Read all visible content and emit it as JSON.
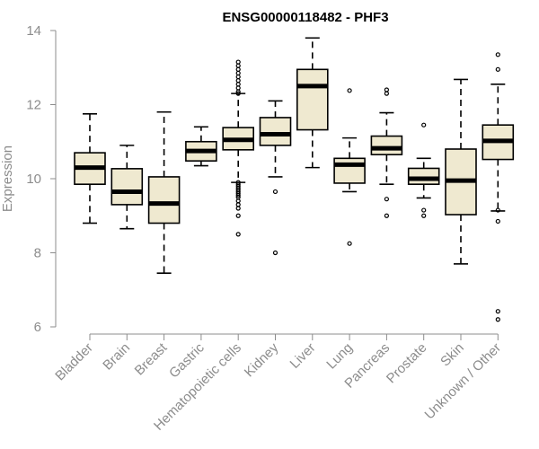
{
  "chart_data": {
    "type": "boxplot",
    "title": "ENSG00000118482 - PHF3",
    "ylabel": "Expression",
    "xlabel": "",
    "ylim": [
      6,
      14
    ],
    "yticks": [
      6,
      8,
      10,
      12,
      14
    ],
    "box_fill": "#efe9d0",
    "categories": [
      "Bladder",
      "Brain",
      "Breast",
      "Gastric",
      "Hematopoietic cells",
      "Kidney",
      "Liver",
      "Lung",
      "Pancreas",
      "Prostate",
      "Skin",
      "Unknown / Other"
    ],
    "boxes": [
      {
        "category": "Bladder",
        "whisker_low": 8.8,
        "q1": 9.85,
        "median": 10.3,
        "q3": 10.7,
        "whisker_high": 11.75,
        "outliers": []
      },
      {
        "category": "Brain",
        "whisker_low": 8.65,
        "q1": 9.3,
        "median": 9.65,
        "q3": 10.27,
        "whisker_high": 10.9,
        "outliers": []
      },
      {
        "category": "Breast",
        "whisker_low": 7.45,
        "q1": 8.8,
        "median": 9.33,
        "q3": 10.05,
        "whisker_high": 11.8,
        "outliers": []
      },
      {
        "category": "Gastric",
        "whisker_low": 10.35,
        "q1": 10.48,
        "median": 10.75,
        "q3": 11.0,
        "whisker_high": 11.4,
        "outliers": []
      },
      {
        "category": "Hematopoietic cells",
        "whisker_low": 9.9,
        "q1": 10.78,
        "median": 11.05,
        "q3": 11.38,
        "whisker_high": 12.3,
        "outliers": [
          8.5,
          9.0,
          9.2,
          9.3,
          9.4,
          9.5,
          9.55,
          9.6,
          9.65,
          9.7,
          9.75,
          9.8,
          9.85,
          9.9,
          12.3,
          12.35,
          12.45,
          12.55,
          12.65,
          12.75,
          12.85,
          12.95,
          13.05,
          13.15
        ]
      },
      {
        "category": "Kidney",
        "whisker_low": 10.05,
        "q1": 10.9,
        "median": 11.2,
        "q3": 11.65,
        "whisker_high": 12.1,
        "outliers": [
          8.0,
          9.65
        ]
      },
      {
        "category": "Liver",
        "whisker_low": 10.3,
        "q1": 11.32,
        "median": 12.5,
        "q3": 12.95,
        "whisker_high": 13.8,
        "outliers": []
      },
      {
        "category": "Lung",
        "whisker_low": 9.65,
        "q1": 9.88,
        "median": 10.38,
        "q3": 10.55,
        "whisker_high": 11.1,
        "outliers": [
          8.25,
          12.38
        ]
      },
      {
        "category": "Pancreas",
        "whisker_low": 9.85,
        "q1": 10.65,
        "median": 10.82,
        "q3": 11.15,
        "whisker_high": 11.78,
        "outliers": [
          9.0,
          9.45,
          12.3,
          12.4
        ]
      },
      {
        "category": "Prostate",
        "whisker_low": 9.48,
        "q1": 9.85,
        "median": 10.0,
        "q3": 10.28,
        "whisker_high": 10.55,
        "outliers": [
          9.0,
          9.15,
          11.45
        ]
      },
      {
        "category": "Skin",
        "whisker_low": 7.7,
        "q1": 9.03,
        "median": 9.95,
        "q3": 10.8,
        "whisker_high": 12.68,
        "outliers": []
      },
      {
        "category": "Unknown / Other",
        "whisker_low": 9.13,
        "q1": 10.52,
        "median": 11.02,
        "q3": 11.45,
        "whisker_high": 12.55,
        "outliers": [
          6.2,
          6.42,
          8.85,
          9.15,
          12.95,
          13.35
        ]
      }
    ]
  }
}
